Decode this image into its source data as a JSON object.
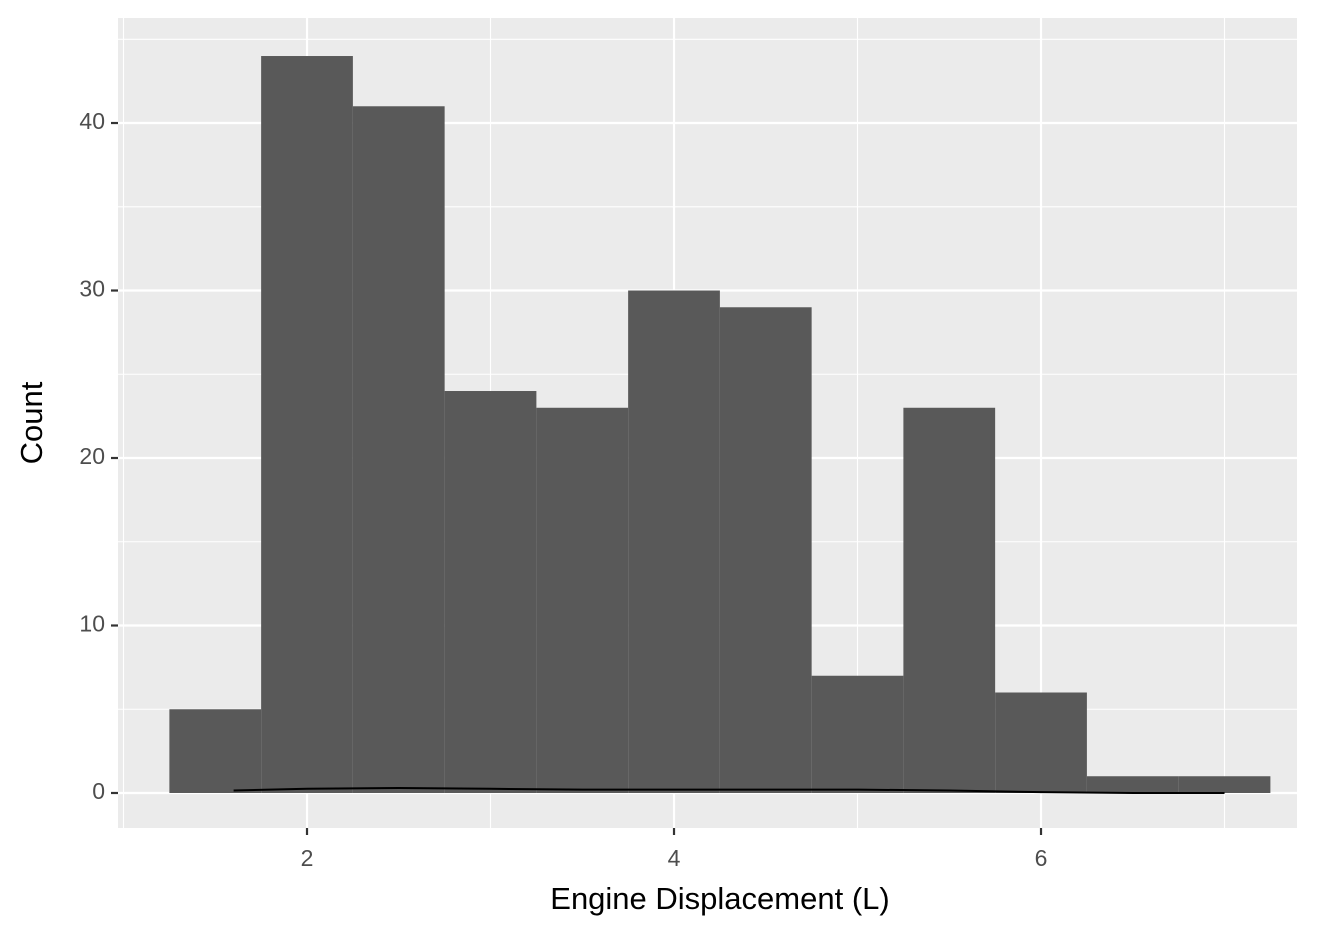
{
  "chart_data": {
    "type": "histogram",
    "x_label": "Engine Displacement (L)",
    "y_label": "Count",
    "bins": [
      1.25,
      1.75,
      2.25,
      2.75,
      3.25,
      3.75,
      4.25,
      4.75,
      5.25,
      5.75,
      6.25,
      6.75,
      7.25
    ],
    "values": [
      5,
      44,
      41,
      24,
      23,
      30,
      29,
      7,
      23,
      6,
      1,
      1
    ],
    "color": "#595959",
    "density": {
      "x": [
        1.6,
        2,
        2.5,
        3,
        3.5,
        4,
        4.5,
        5,
        5.5,
        6,
        6.5,
        7
      ],
      "values": [
        0.15,
        0.25,
        0.3,
        0.25,
        0.2,
        0.2,
        0.2,
        0.2,
        0.15,
        0.05,
        0,
        0
      ],
      "color": "#000000"
    },
    "xlim": [
      0.97,
      7.395
    ],
    "ylim": [
      -2.09,
      46.27
    ],
    "xticks": [
      2,
      4,
      6
    ],
    "yticks": [
      0,
      10,
      20,
      30,
      40
    ],
    "x_minor_ticks": [
      1,
      3,
      5,
      7
    ],
    "y_minor_ticks": [
      5,
      15,
      25,
      35,
      45
    ],
    "grid": true
  }
}
